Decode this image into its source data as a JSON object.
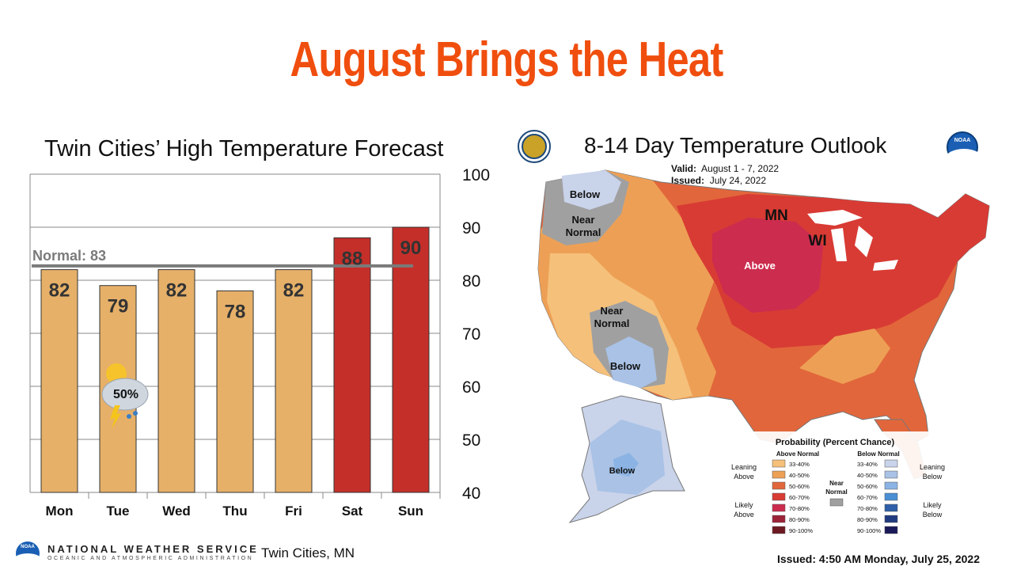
{
  "slide": {
    "title": "August Brings the Heat",
    "location": "Twin Cities, MN",
    "issued": "Issued: 4:50 AM Monday, July 25, 2022"
  },
  "branding": {
    "agency_name": "NATIONAL WEATHER SERVICE",
    "agency_sub": "OCEANIC AND ATMOSPHERIC ADMINISTRATION",
    "noaa_logo_text": "NOAA",
    "noaa_logo_icon": "noaa-logo-icon",
    "doc_seal_icon": "commerce-seal-icon"
  },
  "chart_data": {
    "type": "bar",
    "title": "Twin Cities’ High Temperature Forecast",
    "categories": [
      "Mon",
      "Tue",
      "Wed",
      "Thu",
      "Fri",
      "Sat",
      "Sun"
    ],
    "values": [
      82,
      79,
      82,
      78,
      82,
      88,
      90
    ],
    "labels": [
      "82",
      "79",
      "82",
      "78",
      "82",
      "88",
      "90"
    ],
    "ylim": [
      40,
      100
    ],
    "yticks": [
      "40",
      "50",
      "60",
      "70",
      "80",
      "90",
      "100"
    ],
    "y_axis_side": "right",
    "grid": true,
    "normal": {
      "label": "Normal: 83",
      "value": 83
    },
    "bar_colors": [
      "#e6b069",
      "#e6b069",
      "#e6b069",
      "#e6b069",
      "#e6b069",
      "#c42f2a",
      "#c42f2a"
    ],
    "annotation": {
      "category": "Tue",
      "text": "50%",
      "icon": "thunderstorm-chance-icon"
    }
  },
  "map": {
    "title": "8-14 Day Temperature Outlook",
    "valid_label": "Valid:",
    "valid_value": "August 1 - 7, 2022",
    "issued_label": "Issued:",
    "issued_value": "July 24, 2022",
    "labels": {
      "below_nw": "Below",
      "near_nw_1": "Near",
      "near_nw_2": "Normal",
      "near_sw_1": "Near",
      "near_sw_2": "Normal",
      "below_sw": "Below",
      "above": "Above",
      "below_ak": "Below",
      "mn": "MN",
      "wi": "WI"
    },
    "legend": {
      "title": "Probability (Percent Chance)",
      "above_header": "Above Normal",
      "below_header": "Below Normal",
      "leaning_above": [
        "Leaning",
        "Above"
      ],
      "likely_above": [
        "Likely",
        "Above"
      ],
      "leaning_below": [
        "Leaning",
        "Below"
      ],
      "likely_below": [
        "Likely",
        "Below"
      ],
      "near_normal": [
        "Near",
        "Normal"
      ],
      "ranges": [
        "33-40%",
        "40-50%",
        "50-60%",
        "60-70%",
        "70-80%",
        "80-90%",
        "90-100%"
      ],
      "above_colors": [
        "#f5c07a",
        "#eda055",
        "#e2663b",
        "#d83b34",
        "#cc2c4e",
        "#9c2338",
        "#6e1a22"
      ],
      "below_colors": [
        "#c9d3ea",
        "#a9c2e6",
        "#8bb3e3",
        "#4a8fd4",
        "#2e5fa8",
        "#213b80",
        "#1a1a5a"
      ],
      "near_color": "#a0a0a0"
    }
  }
}
